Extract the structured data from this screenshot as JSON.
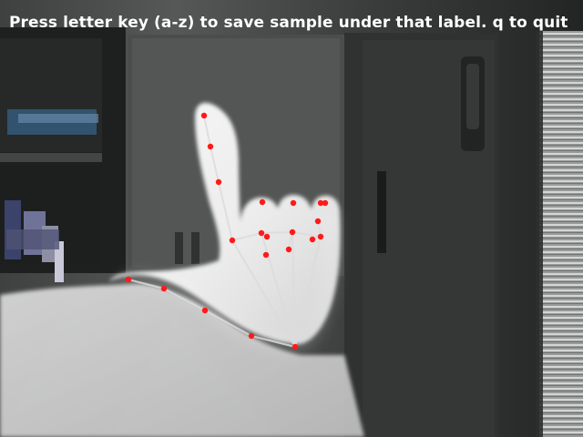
{
  "camera_view": {
    "instruction_overlay": "Press letter key (a-z) to save sample under that label. q to quit",
    "landmark_color": "#ff1a1a",
    "connection_color": "#dcdcdc",
    "overlay_text_color": "#ffffff"
  }
}
